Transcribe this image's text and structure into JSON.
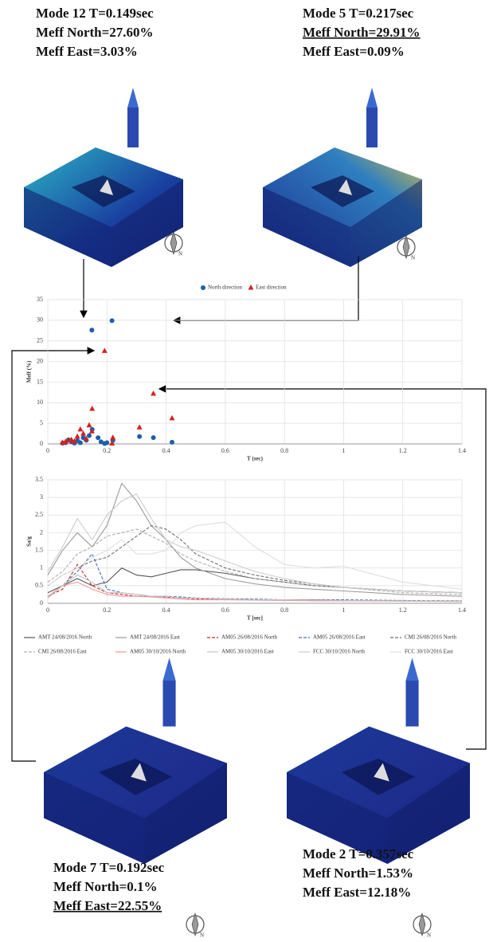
{
  "modes": [
    {
      "lines": [
        "Mode 12 T=0.149sec",
        "Meff North=27.60%",
        "Meff East=3.03%"
      ]
    },
    {
      "lines": [
        "Mode 5 T=0.217sec",
        "Meff North=29.91%",
        "Meff East=0.09%"
      ]
    },
    {
      "lines": [
        "Mode 7 T=0.192sec",
        "Meff North=0.1%",
        "Meff East=22.55%"
      ]
    },
    {
      "lines": [
        "Mode 2 T=0.357sec",
        "Meff North=1.53%",
        "Meff East=12.18%"
      ]
    }
  ],
  "chart_data": [
    {
      "type": "scatter",
      "x_label": "T (sec)",
      "y_label": "Meff (%)",
      "xlim": [
        0,
        1.4
      ],
      "xticks": [
        0,
        0.2,
        0.4,
        0.6,
        0.8,
        1,
        1.2,
        1.4
      ],
      "ylim": [
        0,
        35
      ],
      "yticks": [
        0,
        5,
        10,
        15,
        20,
        25,
        30,
        35
      ],
      "grid": true,
      "legend": "top",
      "series": [
        {
          "name": "North direction",
          "color": "#1f5fa8",
          "marker": "circle",
          "x": [
            0.149,
            0.217,
            0.357,
            0.192,
            0.42,
            0.31,
            0.15,
            0.14,
            0.12,
            0.1,
            0.08,
            0.06,
            0.07,
            0.09,
            0.11,
            0.13,
            0.17,
            0.2,
            0.22,
            0.18,
            0.05
          ],
          "values": [
            27.6,
            29.91,
            1.53,
            0.1,
            0.4,
            1.8,
            3.5,
            2,
            1.5,
            0.8,
            0.5,
            0.3,
            1,
            0.2,
            0.3,
            0.9,
            1.5,
            0.3,
            0.8,
            0.5,
            0.2
          ]
        },
        {
          "name": "East direction",
          "color": "#d42020",
          "marker": "triangle",
          "x": [
            0.149,
            0.217,
            0.357,
            0.192,
            0.42,
            0.31,
            0.15,
            0.11,
            0.12,
            0.1,
            0.13,
            0.08,
            0.06,
            0.07,
            0.09,
            0.14,
            0.22,
            0.05
          ],
          "values": [
            3.03,
            0.09,
            12.18,
            22.55,
            6.2,
            4,
            8.5,
            3.5,
            2.5,
            1.8,
            1.2,
            1,
            0.5,
            0.8,
            0.6,
            4.5,
            1.5,
            0.3
          ]
        }
      ]
    },
    {
      "type": "line",
      "x_label": "T [sec]",
      "y_label": "Sa/g",
      "xlim": [
        0,
        1.4
      ],
      "xticks": [
        0,
        0.2,
        0.4,
        0.6,
        0.8,
        1,
        1.2,
        1.4
      ],
      "ylim": [
        0,
        3.5
      ],
      "yticks": [
        0,
        0.5,
        1,
        1.5,
        2,
        2.5,
        3,
        3.5
      ],
      "grid": true,
      "legend": "bottom",
      "x": [
        0,
        0.05,
        0.1,
        0.15,
        0.2,
        0.25,
        0.3,
        0.35,
        0.4,
        0.45,
        0.5,
        0.6,
        0.7,
        0.8,
        0.9,
        1,
        1.2,
        1.4
      ],
      "series": [
        {
          "name": "AMT 24/08/2016 North",
          "color": "#555555",
          "dash": false,
          "values": [
            0.3,
            0.5,
            0.7,
            0.5,
            0.6,
            1,
            0.8,
            0.75,
            0.85,
            0.95,
            0.95,
            0.85,
            0.7,
            0.6,
            0.5,
            0.45,
            0.35,
            0.3
          ]
        },
        {
          "name": "AMT 24/08/2016 East",
          "color": "#9a9a9a",
          "dash": false,
          "values": [
            0.8,
            1.5,
            2,
            1.6,
            2.2,
            3.4,
            2.9,
            2.2,
            1.8,
            1.3,
            1,
            0.7,
            0.55,
            0.45,
            0.4,
            0.35,
            0.25,
            0.2
          ]
        },
        {
          "name": "AM05  26/08/2016 North",
          "color": "#d42020",
          "dash": true,
          "values": [
            0.2,
            0.4,
            1.1,
            0.5,
            0.3,
            0.25,
            0.2,
            0.2,
            0.18,
            0.15,
            0.13,
            0.12,
            0.1,
            0.1,
            0.1,
            0.08,
            0.07,
            0.06
          ]
        },
        {
          "name": "AM05  26/08/2016 East",
          "color": "#4a6fb5",
          "dash": true,
          "values": [
            0.2,
            0.5,
            0.9,
            1.4,
            0.4,
            0.3,
            0.25,
            0.2,
            0.2,
            0.18,
            0.15,
            0.13,
            0.12,
            0.1,
            0.1,
            0.1,
            0.08,
            0.07
          ]
        },
        {
          "name": "CMI 26/08/2016 North",
          "color": "#707070",
          "dash": true,
          "values": [
            0.5,
            0.8,
            1,
            1.2,
            1.3,
            1.6,
            1.9,
            2.2,
            2.1,
            1.8,
            1.4,
            1,
            0.8,
            0.65,
            0.55,
            0.45,
            0.35,
            0.3
          ]
        },
        {
          "name": "CMI 26/08/2016 East",
          "color": "#b0b0b0",
          "dash": true,
          "values": [
            0.6,
            0.9,
            1.4,
            1.6,
            1.9,
            2,
            2.1,
            1.9,
            1.7,
            1.4,
            1.2,
            0.9,
            0.7,
            0.6,
            0.5,
            0.45,
            0.3,
            0.25
          ]
        },
        {
          "name": "AM05  30/10/2016 North",
          "color": "#e89aa0",
          "dash": false,
          "values": [
            0.15,
            0.5,
            0.6,
            0.4,
            0.25,
            0.2,
            0.2,
            0.18,
            0.15,
            0.12,
            0.1,
            0.1,
            0.09,
            0.08,
            0.07,
            0.07,
            0.06,
            0.05
          ]
        },
        {
          "name": "AM05  30/10/2016 East",
          "color": "#c4c4c4",
          "dash": false,
          "values": [
            0.2,
            0.5,
            0.8,
            0.6,
            0.3,
            0.3,
            0.25,
            0.2,
            0.2,
            0.15,
            0.15,
            0.12,
            0.1,
            0.1,
            0.09,
            0.08,
            0.07,
            0.06
          ]
        },
        {
          "name": "FCC 30/10/2016 North",
          "color": "#cccccc",
          "dash": false,
          "values": [
            0.9,
            1.6,
            2.4,
            1.8,
            2.5,
            2.9,
            3.1,
            2.4,
            1.8,
            1.6,
            1.5,
            1.2,
            0.9,
            0.7,
            0.55,
            0.45,
            0.35,
            0.3
          ]
        },
        {
          "name": "FCC 30/10/2016 East",
          "color": "#dedede",
          "dash": false,
          "values": [
            0.5,
            0.8,
            1,
            1.3,
            1.5,
            1.8,
            1.4,
            1.4,
            1.5,
            2,
            2.2,
            2.3,
            1.6,
            1.1,
            1,
            1.05,
            0.6,
            0.4
          ]
        }
      ]
    }
  ]
}
